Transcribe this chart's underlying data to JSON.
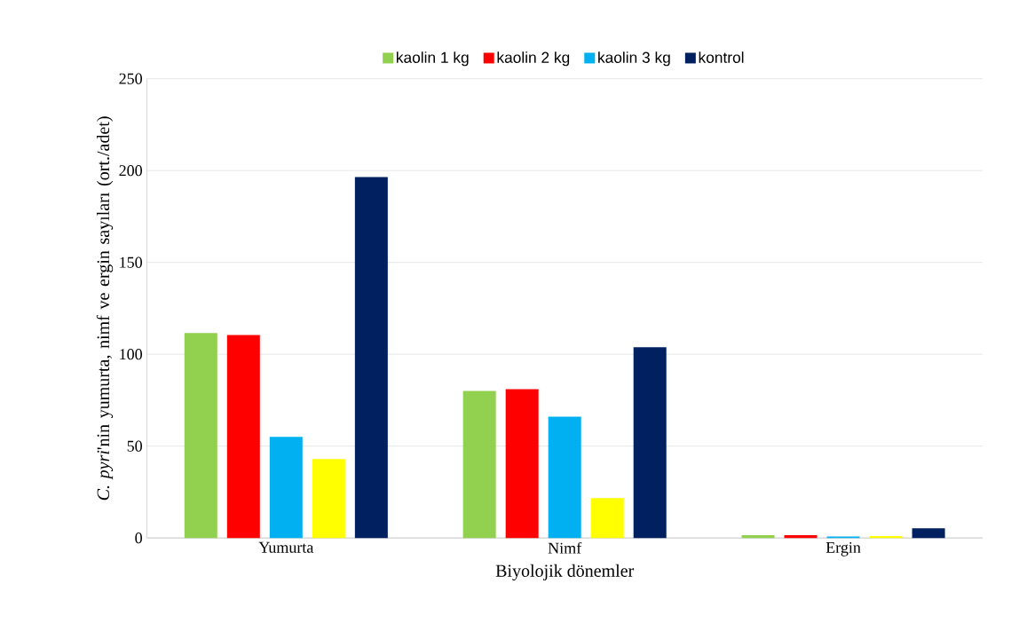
{
  "chart_data": {
    "type": "bar",
    "xlabel": "Biyolojik dönemler",
    "ylabel": "*C. pyri*'nin yumurta, nimf ve ergin sayıları (ort./adet)",
    "categories": [
      "Yumurta",
      "Nimf",
      "Ergin"
    ],
    "series": [
      {
        "name": "kaolin 1 kg",
        "color": "#92d050",
        "values": [
          111.5,
          80,
          1.5
        ]
      },
      {
        "name": "kaolin 2 kg",
        "color": "#ff0000",
        "values": [
          110.5,
          81,
          1.5
        ]
      },
      {
        "name": "kaolin 3 kg",
        "color": "#00b0f0",
        "values": [
          55,
          66,
          0.8
        ]
      },
      {
        "color": "#ffff00",
        "values": [
          43,
          21.7,
          1
        ]
      },
      {
        "name": "kontrol",
        "color": "#002060",
        "values": [
          196.5,
          103.8,
          5.3
        ]
      }
    ],
    "ylim": [
      0,
      250
    ],
    "yticks": [
      0,
      50,
      100,
      150,
      200,
      250
    ],
    "grid": "y",
    "legend": "top"
  }
}
